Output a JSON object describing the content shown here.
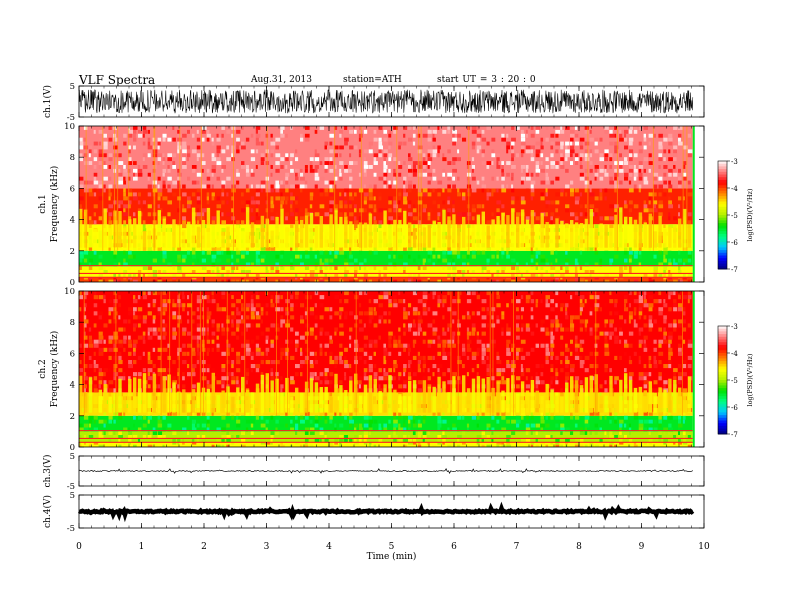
{
  "header": {
    "title": "VLF  Spectra",
    "date": "Aug.31, 2013",
    "station": "station=ATH",
    "start": "start  UT  =   3  : 20 : 0"
  },
  "chart_data": {
    "type": "multi-panel spectrogram + waveform",
    "xlabel": "Time  (min)",
    "xlim": [
      0,
      10
    ],
    "x_ticks": [
      "0",
      "1",
      "2",
      "3",
      "4",
      "5",
      "6",
      "7",
      "8",
      "9",
      "10"
    ],
    "data_end_min": 9.82,
    "panels": [
      {
        "id": "ch1-wave",
        "type": "line",
        "ylabel": "ch.1(V)",
        "ylim": [
          -5,
          5
        ],
        "y_ticks": [
          "5",
          "-5"
        ],
        "amplitude_V": 3.8
      },
      {
        "id": "ch1-spec",
        "type": "heatmap",
        "ylabel_top": "ch.1",
        "ylabel": "Frequency  (kHz)",
        "ylim": [
          0,
          10
        ],
        "y_ticks": [
          "0",
          "2",
          "4",
          "6",
          "8",
          "10"
        ],
        "bands": [
          {
            "from_khz": 0.0,
            "to_khz": 0.3,
            "logpsd": -4.0
          },
          {
            "from_khz": 0.3,
            "to_khz": 1.0,
            "logpsd": -4.6
          },
          {
            "from_khz": 1.0,
            "to_khz": 2.0,
            "logpsd": -5.5
          },
          {
            "from_khz": 2.0,
            "to_khz": 3.7,
            "logpsd": -4.6
          },
          {
            "from_khz": 3.7,
            "to_khz": 6.0,
            "logpsd": -3.9
          },
          {
            "from_khz": 6.0,
            "to_khz": 10.0,
            "logpsd": -3.4
          }
        ]
      },
      {
        "id": "ch2-spec",
        "type": "heatmap",
        "ylabel_top": "ch.2",
        "ylabel": "Frequency  (kHz)",
        "ylim": [
          0,
          10
        ],
        "y_ticks": [
          "0",
          "2",
          "4",
          "6",
          "8",
          "10"
        ],
        "bands": [
          {
            "from_khz": 0.0,
            "to_khz": 0.3,
            "logpsd": -4.6
          },
          {
            "from_khz": 0.3,
            "to_khz": 1.0,
            "logpsd": -5.0
          },
          {
            "from_khz": 1.0,
            "to_khz": 2.0,
            "logpsd": -5.5
          },
          {
            "from_khz": 2.0,
            "to_khz": 3.5,
            "logpsd": -4.5
          },
          {
            "from_khz": 3.5,
            "to_khz": 10.0,
            "logpsd": -3.8
          }
        ]
      },
      {
        "id": "ch3-wave",
        "type": "line",
        "ylabel": "ch.3(V)",
        "ylim": [
          -5,
          5
        ],
        "y_ticks": [
          "5",
          "-5"
        ],
        "level_V": 0,
        "amplitude_V": 0.3
      },
      {
        "id": "ch4-wave",
        "type": "line",
        "ylabel": "ch.4(V)",
        "ylim": [
          -5,
          5
        ],
        "y_ticks": [
          "5",
          "-5"
        ],
        "level_V": 0,
        "amplitude_V": 0.4
      }
    ],
    "colorbar": {
      "label": "log(PSD)(V²/Hz)",
      "range": [
        -7,
        -3
      ],
      "ticks": [
        "-3",
        "-4",
        "-5",
        "-6",
        "-7"
      ],
      "colors": [
        "#000080",
        "#0000ff",
        "#00c8ff",
        "#00ff80",
        "#00e000",
        "#b4f000",
        "#ffff00",
        "#ff8000",
        "#ff0000",
        "#ff8080",
        "#ffffff"
      ]
    }
  }
}
